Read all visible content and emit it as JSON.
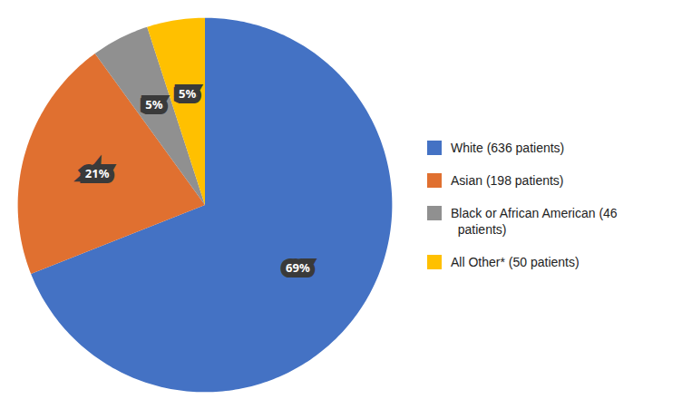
{
  "chart_data": {
    "type": "pie",
    "categories": [
      "White (636 patients)",
      "Asian (198 patients)",
      "Black or African American (46\n  patients)",
      "All Other* (50 patients)"
    ],
    "values": [
      69,
      21,
      5,
      5
    ],
    "value_labels": [
      "69%",
      "21%",
      "5%",
      "5%"
    ],
    "colors": [
      "#4472c4",
      "#e07030",
      "#909090",
      "#ffc000"
    ],
    "data_labels": true,
    "legend": "right",
    "tick_labels": false
  }
}
